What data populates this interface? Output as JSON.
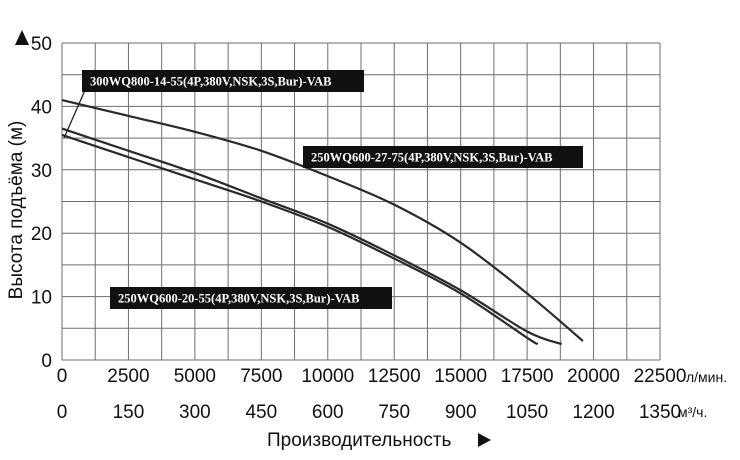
{
  "chart_data": {
    "type": "line",
    "y_axis": {
      "label": "Высота подъёма (м)",
      "ticks": [
        "0",
        "10",
        "20",
        "30",
        "40",
        "50"
      ],
      "range": [
        0,
        50
      ]
    },
    "x_axis_primary": {
      "unit": "л/мин.",
      "ticks": [
        "0",
        "2500",
        "5000",
        "7500",
        "10000",
        "12500",
        "15000",
        "17500",
        "20000",
        "22500"
      ],
      "range": [
        0,
        22500
      ]
    },
    "x_axis_secondary": {
      "unit": "м³/ч.",
      "ticks": [
        "0",
        "150",
        "300",
        "450",
        "600",
        "750",
        "900",
        "1050",
        "1200",
        "1350"
      ]
    },
    "x_axis_title": "Производительность",
    "grid": true,
    "series": [
      {
        "name": "300WQ800-14-55(4P,380V,NSK,3S,Bur)-VAB",
        "x": [
          0,
          2500,
          5000,
          7500,
          10000,
          12500,
          15000,
          17500,
          18800
        ],
        "y": [
          36.5,
          33,
          29.5,
          25.5,
          21.5,
          16.5,
          11,
          4.5,
          2.5
        ]
      },
      {
        "name": "250WQ600-27-75(4P,380V,NSK,3S,Bur)-VAB",
        "x": [
          0,
          2500,
          5000,
          7500,
          10000,
          12500,
          15000,
          17500,
          19600
        ],
        "y": [
          41,
          38.5,
          36,
          33,
          29,
          24.5,
          18.5,
          10.5,
          3
        ]
      },
      {
        "name": "250WQ600-20-55(4P,380V,NSK,3S,Bur)-VAB",
        "x": [
          0,
          2500,
          5000,
          7500,
          10000,
          12500,
          15000,
          17500,
          17900
        ],
        "y": [
          35.5,
          32,
          28.5,
          25,
          21,
          16,
          10.5,
          3.5,
          2.5
        ]
      }
    ]
  }
}
